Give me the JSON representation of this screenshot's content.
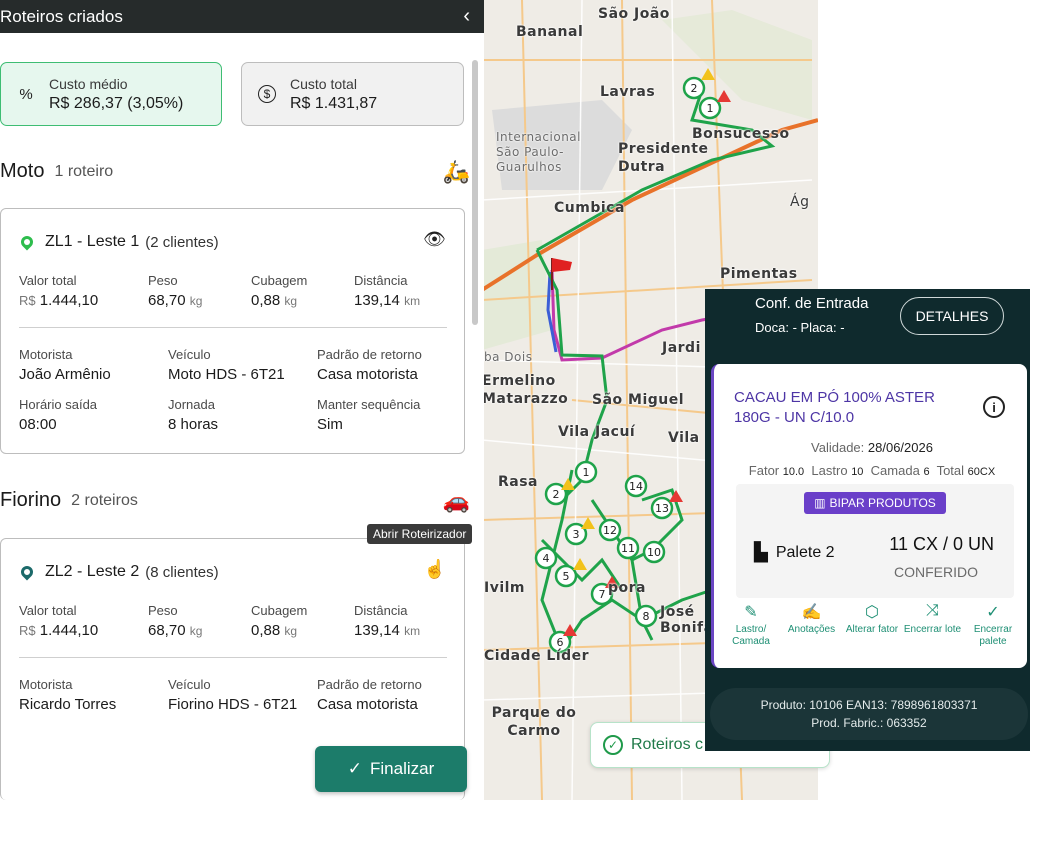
{
  "panel": {
    "title": "Roteiros criados",
    "back_icon": "chevron-left-icon"
  },
  "costs": {
    "avg_label": "Custo médio",
    "avg_value": "R$ 286,37 (3,05%)",
    "avg_icon": "%",
    "total_label": "Custo total",
    "total_value": "R$ 1.431,87",
    "total_icon": "$"
  },
  "groups": [
    {
      "name": "Moto",
      "count": "1 roteiro",
      "vehicle_icon": "motorcycle-icon",
      "route": {
        "pin_color": "#2ebd4d",
        "name": "ZL1 - Leste 1",
        "clients": "(2 clientes)",
        "action_icon": "eye-icon",
        "stats": [
          {
            "label": "Valor total",
            "prefix": "R$",
            "value": "1.444,10",
            "unit": ""
          },
          {
            "label": "Peso",
            "prefix": "",
            "value": "68,70",
            "unit": "kg"
          },
          {
            "label": "Cubagem",
            "prefix": "",
            "value": "0,88",
            "unit": "kg"
          },
          {
            "label": "Distância",
            "prefix": "",
            "value": "139,14",
            "unit": "km"
          }
        ],
        "details": [
          {
            "label": "Motorista",
            "value": "João Armênio"
          },
          {
            "label": "Veículo",
            "value": "Moto HDS - 6T21"
          },
          {
            "label": "Padrão de retorno",
            "value": "Casa motorista"
          },
          {
            "label": "Horário saída",
            "value": "08:00"
          },
          {
            "label": "Jornada",
            "value": "8 horas"
          },
          {
            "label": "Manter sequência",
            "value": "Sim"
          }
        ]
      }
    },
    {
      "name": "Fiorino",
      "count": "2 roteiros",
      "vehicle_icon": "car-icon",
      "route": {
        "pin_color": "#1c6a6a",
        "name": "ZL2 - Leste 2",
        "clients": "(8 clientes)",
        "action_icon": "touch-icon",
        "stats": [
          {
            "label": "Valor total",
            "prefix": "R$",
            "value": "1.444,10",
            "unit": ""
          },
          {
            "label": "Peso",
            "prefix": "",
            "value": "68,70",
            "unit": "kg"
          },
          {
            "label": "Cubagem",
            "prefix": "",
            "value": "0,88",
            "unit": "kg"
          },
          {
            "label": "Distância",
            "prefix": "",
            "value": "139,14",
            "unit": "km"
          }
        ],
        "details": [
          {
            "label": "Motorista",
            "value": "Ricardo Torres"
          },
          {
            "label": "Veículo",
            "value": "Fiorino HDS - 6T21"
          },
          {
            "label": "Padrão de retorno",
            "value": "Casa motorista"
          }
        ]
      }
    }
  ],
  "tooltip": "Abrir Roteirizador",
  "finalize_label": "Finalizar",
  "map": {
    "labels": [
      "São João",
      "Bananal",
      "Lavras",
      "Bonsucesso",
      "Internacional São Paulo-Guarulhos",
      "Presidente Dutra",
      "Cumbica",
      "Ág",
      "Pimentas",
      "Jardi",
      "Ermelino Matarazzo",
      "São Miguel",
      "Vila Jacuí",
      "Vila",
      "Rasa",
      "José Bonifácio",
      "Cidade Líder",
      "Parque do Carmo",
      "Ivilm",
      "ba Dois",
      "pora"
    ],
    "markers": [
      "1",
      "2",
      "1",
      "2",
      "3",
      "4",
      "5",
      "6",
      "7",
      "8",
      "10",
      "11",
      "12",
      "13",
      "14"
    ],
    "chip_label": "Roteiros c"
  },
  "mobile": {
    "title": "Conf. de Entrada",
    "subtitle": "Doca: -   Placa: -",
    "details_button": "DETALHES",
    "product_name": "CACAU EM PÓ 100% ASTER 180G - UN C/10.0",
    "validity_label": "Validade:",
    "validity_value": "28/06/2026",
    "factors": [
      {
        "label": "Fator",
        "value": "10.0"
      },
      {
        "label": "Lastro",
        "value": "10"
      },
      {
        "label": "Camada",
        "value": "6"
      },
      {
        "label": "Total",
        "value": "60CX"
      }
    ],
    "scan_button": "BIPAR PRODUTOS",
    "pallet_label": "Palete 2",
    "quantity": "11 CX / 0 UN",
    "status": "CONFERIDO",
    "actions": [
      {
        "icon": "pencil-icon",
        "label": "Lastro/ Camada"
      },
      {
        "icon": "edit-note-icon",
        "label": "Anotações"
      },
      {
        "icon": "box-icon",
        "label": "Alterar fator"
      },
      {
        "icon": "shuffle-icon",
        "label": "Encerrar lote"
      },
      {
        "icon": "check-circle-icon",
        "label": "Encerrar palete"
      }
    ],
    "footer_line1": "Produto: 10106     EAN13: 7898961803371",
    "footer_line2": "Prod. Fabric.: 063352"
  }
}
